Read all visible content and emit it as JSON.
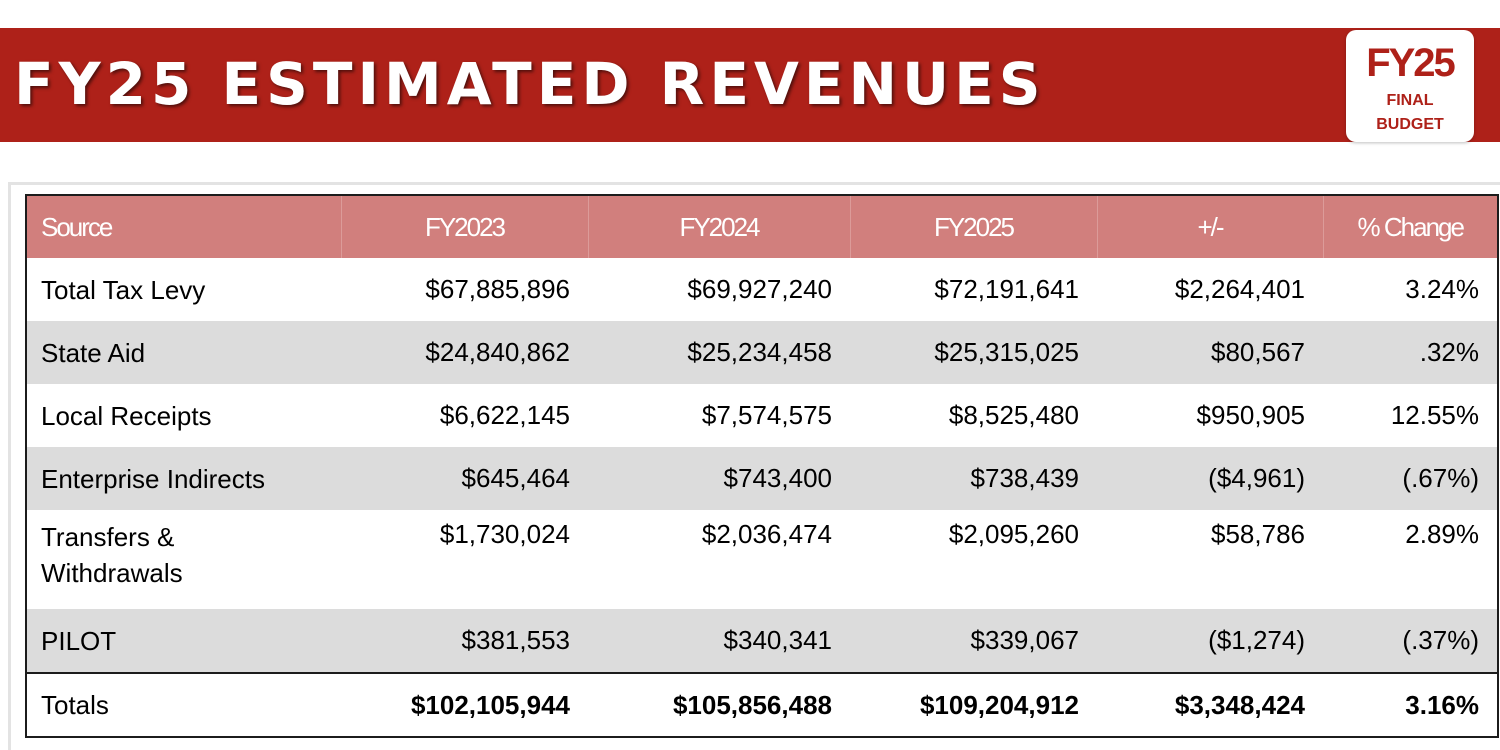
{
  "header": {
    "title": "FY25 ESTIMATED REVENUES",
    "badge": {
      "year": "FY25",
      "line1": "FINAL",
      "line2": "BUDGET"
    },
    "accent_color": "#ae2119"
  },
  "table": {
    "header_color": "#d17f7d",
    "stripe_color": "#dcdcdc",
    "columns": [
      "Source",
      "FY2023",
      "FY2024",
      "FY2025",
      "+/-",
      "% Change"
    ],
    "rows": [
      {
        "source": "Total Tax Levy",
        "fy2023": "$67,885,896",
        "fy2024": "$69,927,240",
        "fy2025": "$72,191,641",
        "diff": "$2,264,401",
        "pct": "3.24%"
      },
      {
        "source": "State Aid",
        "fy2023": "$24,840,862",
        "fy2024": "$25,234,458",
        "fy2025": "$25,315,025",
        "diff": "$80,567",
        "pct": ".32%"
      },
      {
        "source": "Local Receipts",
        "fy2023": "$6,622,145",
        "fy2024": "$7,574,575",
        "fy2025": "$8,525,480",
        "diff": "$950,905",
        "pct": "12.55%"
      },
      {
        "source": "Enterprise Indirects",
        "fy2023": "$645,464",
        "fy2024": "$743,400",
        "fy2025": "$738,439",
        "diff": "($4,961)",
        "pct": "(.67%)"
      },
      {
        "source": "Transfers & Withdrawals",
        "fy2023": "$1,730,024",
        "fy2024": "$2,036,474",
        "fy2025": "$2,095,260",
        "diff": "$58,786",
        "pct": "2.89%"
      },
      {
        "source": "PILOT",
        "fy2023": "$381,553",
        "fy2024": "$340,341",
        "fy2025": "$339,067",
        "diff": "($1,274)",
        "pct": "(.37%)"
      }
    ],
    "totals": {
      "source": "Totals",
      "fy2023": "$102,105,944",
      "fy2024": "$105,856,488",
      "fy2025": "$109,204,912",
      "diff": "$3,348,424",
      "pct": "3.16%"
    }
  }
}
